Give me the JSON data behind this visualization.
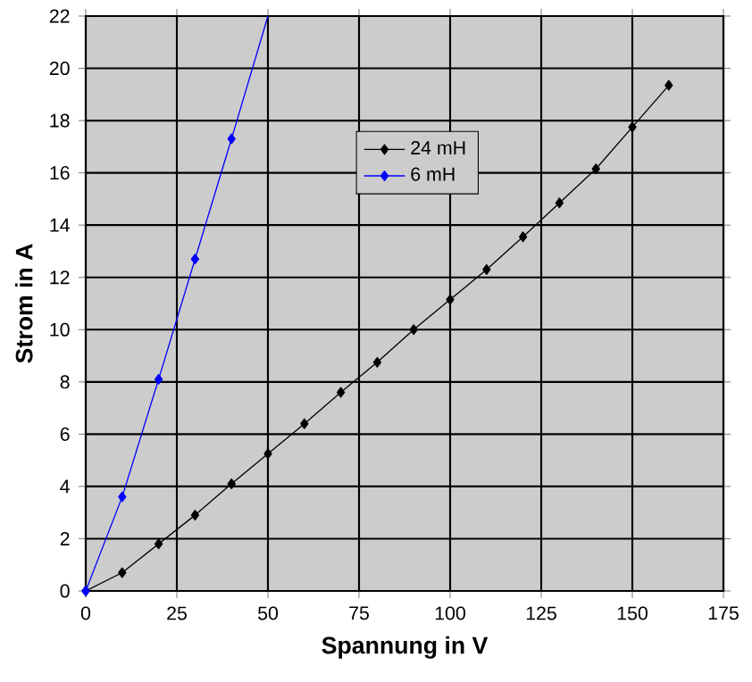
{
  "chart_data": {
    "type": "line",
    "xlabel": "Spannung in V",
    "ylabel": "Strom in A",
    "xlim": [
      0,
      175
    ],
    "xticks": [
      0,
      25,
      50,
      75,
      100,
      125,
      150,
      175
    ],
    "ylim": [
      0,
      22
    ],
    "yticks": [
      0,
      2,
      4,
      6,
      8,
      10,
      12,
      14,
      16,
      18,
      20,
      22
    ],
    "grid": true,
    "legend": "top",
    "marker": "diamond",
    "series": [
      {
        "name": "24 mH",
        "color": "#000000",
        "x": [
          0,
          10,
          20,
          30,
          40,
          50,
          60,
          70,
          80,
          90,
          100,
          110,
          120,
          130,
          140,
          150,
          160
        ],
        "values": [
          0,
          0.7,
          1.8,
          2.9,
          4.1,
          5.25,
          6.4,
          7.6,
          8.75,
          10.0,
          11.15,
          12.3,
          13.55,
          14.85,
          16.15,
          17.75,
          19.35
        ]
      },
      {
        "name": "6 mH",
        "color": "#0000ff",
        "x": [
          0,
          10,
          20,
          30,
          40
        ],
        "values": [
          0,
          3.6,
          8.1,
          12.7,
          17.3
        ]
      },
      {
        "type": "line",
        "marker": "none",
        "color": "#0000ff",
        "x": [
          40,
          50
        ],
        "values": [
          17.3,
          22
        ]
      }
    ]
  }
}
